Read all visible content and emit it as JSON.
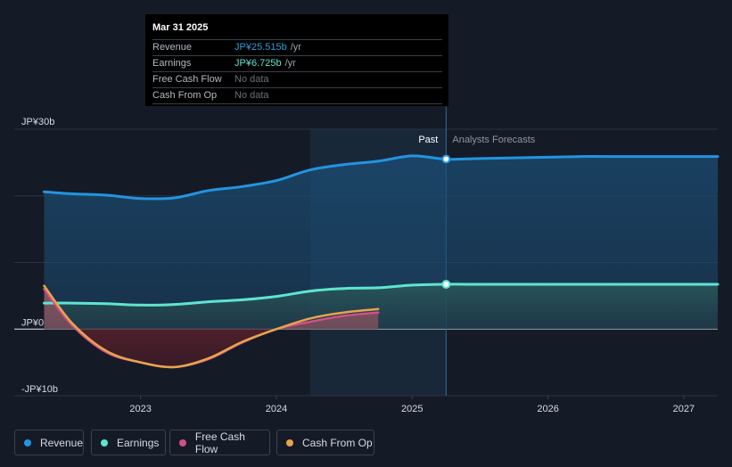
{
  "tooltip": {
    "date": "Mar 31 2025",
    "rows": [
      {
        "label": "Revenue",
        "value": "JP¥25.515b",
        "unit": "/yr",
        "color": "#2d9cdb"
      },
      {
        "label": "Earnings",
        "value": "JP¥6.725b",
        "unit": "/yr",
        "color": "#5ee5cf"
      },
      {
        "label": "Free Cash Flow",
        "value": "No data",
        "unit": "",
        "color": "#6b717c"
      },
      {
        "label": "Cash From Op",
        "value": "No data",
        "unit": "",
        "color": "#6b717c"
      }
    ]
  },
  "legend": [
    {
      "label": "Revenue",
      "color": "#2394e0"
    },
    {
      "label": "Earnings",
      "color": "#5ee5cf"
    },
    {
      "label": "Free Cash Flow",
      "color": "#d44f87"
    },
    {
      "label": "Cash From Op",
      "color": "#e8a44c"
    }
  ],
  "chart_data": {
    "type": "line",
    "y_unit": "JP¥ billions",
    "ylim": [
      -10,
      30
    ],
    "xlim": [
      2022.28,
      2027.25
    ],
    "x_ticks": [
      2023,
      2024,
      2025,
      2026,
      2027
    ],
    "x_tick_labels": [
      "2023",
      "2024",
      "2025",
      "2026",
      "2027"
    ],
    "y_tick_labels": [
      {
        "value": 30,
        "label": "JP¥30b"
      },
      {
        "value": 0,
        "label": "JP¥0"
      },
      {
        "value": -10,
        "label": "-JP¥10b"
      }
    ],
    "gridlines": [
      30,
      20,
      10,
      0
    ],
    "past_label": "Past",
    "forecast_label": "Analysts Forecasts",
    "past_shade_start": 2024.25,
    "forecast_start": 2025.25,
    "series": [
      {
        "name": "Revenue",
        "color": "#2394e0",
        "x": [
          2022.29,
          2022.5,
          2022.75,
          2023.0,
          2023.25,
          2023.5,
          2023.75,
          2024.0,
          2024.25,
          2024.5,
          2024.75,
          2025.0,
          2025.25,
          2025.5,
          2025.75,
          2026.0,
          2026.25,
          2026.5,
          2026.75,
          2027.0,
          2027.25
        ],
        "y": [
          20.6,
          20.3,
          20.1,
          19.6,
          19.7,
          20.8,
          21.4,
          22.3,
          23.9,
          24.7,
          25.2,
          26.0,
          25.5,
          25.6,
          25.7,
          25.8,
          25.9,
          25.9,
          25.9,
          25.9,
          25.9
        ]
      },
      {
        "name": "Earnings",
        "color": "#5ee5cf",
        "x": [
          2022.29,
          2022.5,
          2022.75,
          2023.0,
          2023.25,
          2023.5,
          2023.75,
          2024.0,
          2024.25,
          2024.5,
          2024.75,
          2025.0,
          2025.25,
          2025.5,
          2026.0,
          2026.5,
          2027.0,
          2027.25
        ],
        "y": [
          3.9,
          3.9,
          3.8,
          3.6,
          3.7,
          4.1,
          4.4,
          4.9,
          5.7,
          6.1,
          6.2,
          6.6,
          6.725,
          6.725,
          6.725,
          6.725,
          6.725,
          6.725
        ]
      },
      {
        "name": "Free Cash Flow",
        "color": "#d44f87",
        "x": [
          2022.29,
          2022.5,
          2022.75,
          2023.0,
          2023.25,
          2023.5,
          2023.75,
          2024.0,
          2024.25,
          2024.5,
          2024.75
        ],
        "y": [
          6.0,
          0.5,
          -3.5,
          -5.0,
          -5.7,
          -4.5,
          -2.0,
          0.0,
          1.1,
          2.0,
          2.5
        ]
      },
      {
        "name": "Cash From Op",
        "color": "#e8a44c",
        "x": [
          2022.29,
          2022.5,
          2022.75,
          2023.0,
          2023.25,
          2023.5,
          2023.75,
          2024.0,
          2024.25,
          2024.5,
          2024.75
        ],
        "y": [
          6.5,
          0.8,
          -3.3,
          -5.0,
          -5.7,
          -4.4,
          -1.9,
          0.0,
          1.6,
          2.5,
          3.0
        ]
      }
    ],
    "highlight_points": [
      {
        "series": "Revenue",
        "x": 2025.25,
        "y": 25.515
      },
      {
        "series": "Earnings",
        "x": 2025.25,
        "y": 6.725
      }
    ]
  }
}
